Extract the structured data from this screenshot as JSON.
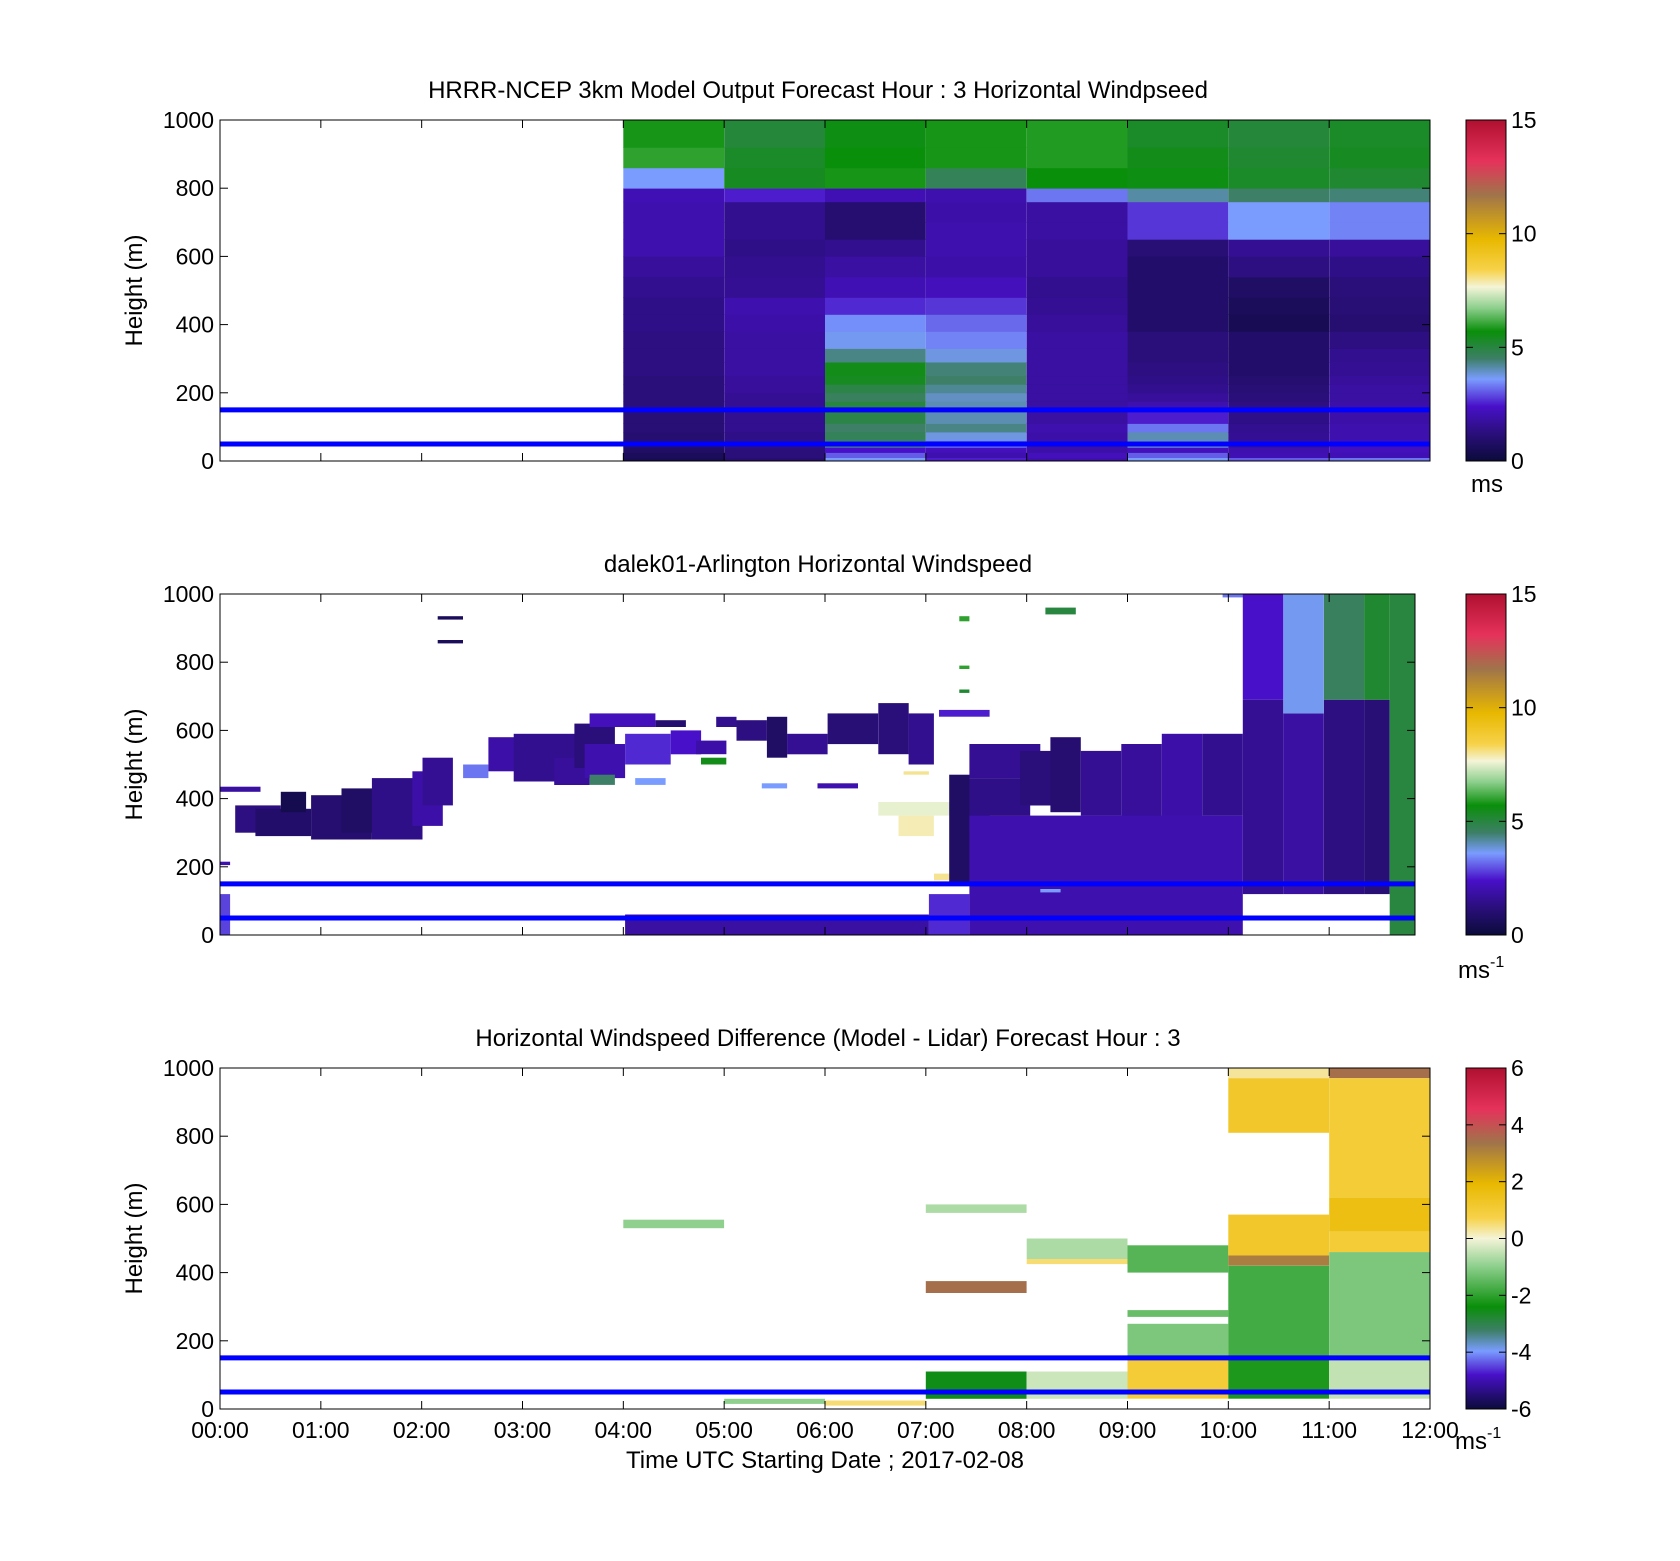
{
  "figure": {
    "xlabel": "Time UTC  Starting Date ; 2017-02-08",
    "xticks": [
      "00:00",
      "01:00",
      "02:00",
      "03:00",
      "04:00",
      "05:00",
      "06:00",
      "07:00",
      "08:00",
      "09:00",
      "10:00",
      "11:00",
      "12:00"
    ],
    "reference_lines": {
      "heights_m": [
        50,
        150
      ],
      "color": "#0000ff"
    }
  },
  "chart_data": [
    {
      "type": "heatmap",
      "title": "HRRR-NCEP 3km Model Output   Forecast Hour : 3 Horizontal Windpseed",
      "ylabel": "Height (m)",
      "ylim": [
        0,
        1000
      ],
      "xlim_hours": [
        0,
        12
      ],
      "yticks": [
        "0",
        "200",
        "400",
        "600",
        "800",
        "1000"
      ],
      "colorbar": {
        "range": [
          0,
          15
        ],
        "ticks": [
          "0",
          "5",
          "10",
          "15"
        ],
        "unit": "ms"
      },
      "data_start_hour": 4,
      "time_step_hours": 1,
      "row_edges_m": [
        0,
        10,
        25,
        40,
        60,
        85,
        110,
        150,
        175,
        200,
        225,
        250,
        290,
        330,
        380,
        430,
        480,
        540,
        600,
        650,
        700,
        760,
        800,
        860,
        920,
        1000
      ],
      "columns": [
        {
          "hour": 4,
          "values": [
            0.5,
            0.6,
            0.8,
            0.9,
            1.0,
            1.1,
            1.1,
            1.2,
            1.2,
            1.2,
            1.2,
            1.3,
            1.3,
            1.3,
            1.4,
            1.4,
            1.5,
            1.7,
            2.0,
            2.0,
            2.0,
            2.1,
            3.5,
            6.0,
            5.8
          ]
        },
        {
          "hour": 5,
          "values": [
            1.0,
            1.2,
            1.2,
            1.3,
            1.4,
            1.5,
            1.5,
            1.6,
            1.6,
            1.7,
            1.7,
            1.8,
            1.8,
            1.8,
            1.9,
            2.0,
            1.6,
            1.5,
            1.4,
            1.5,
            1.5,
            2.5,
            5.4,
            5.3,
            5.1
          ]
        },
        {
          "hour": 6,
          "values": [
            3.5,
            3.0,
            2.4,
            4.3,
            4.7,
            4.5,
            4.9,
            5.0,
            4.6,
            4.9,
            5.4,
            5.5,
            4.3,
            3.6,
            3.4,
            2.6,
            2.1,
            1.8,
            1.5,
            1.0,
            1.0,
            2.1,
            5.8,
            5.7,
            5.6
          ]
        },
        {
          "hour": 7,
          "values": [
            2.5,
            2.0,
            2.2,
            3.2,
            3.7,
            4.3,
            4.0,
            4.0,
            3.9,
            4.2,
            4.5,
            4.4,
            3.7,
            3.3,
            3.1,
            2.7,
            2.2,
            1.9,
            2.0,
            2.0,
            1.9,
            2.0,
            4.7,
            5.8,
            5.8
          ]
        },
        {
          "hour": 8,
          "values": [
            2.0,
            2.2,
            1.9,
            1.8,
            1.9,
            2.0,
            1.8,
            1.8,
            1.8,
            1.8,
            1.8,
            1.8,
            1.8,
            1.8,
            1.7,
            1.6,
            1.5,
            1.7,
            1.7,
            1.8,
            1.8,
            3.2,
            5.7,
            5.9,
            5.9
          ]
        },
        {
          "hour": 9,
          "values": [
            3.5,
            3.0,
            2.2,
            3.8,
            4.0,
            3.2,
            2.5,
            2.0,
            1.7,
            1.5,
            1.4,
            1.3,
            1.2,
            1.2,
            0.9,
            0.9,
            0.9,
            0.9,
            1.1,
            2.7,
            2.7,
            4.1,
            5.6,
            5.5,
            5.3
          ]
        },
        {
          "hour": 10,
          "values": [
            3.0,
            2.1,
            2.0,
            1.7,
            1.6,
            1.5,
            1.4,
            1.3,
            1.2,
            1.1,
            1.0,
            0.9,
            0.9,
            0.9,
            0.5,
            0.6,
            0.8,
            1.3,
            1.6,
            3.5,
            3.5,
            4.5,
            5.3,
            5.2,
            5.1
          ]
        },
        {
          "hour": 11,
          "values": [
            3.2,
            2.1,
            2.2,
            2.2,
            2.0,
            2.0,
            1.9,
            1.9,
            1.8,
            1.8,
            1.7,
            1.6,
            1.5,
            1.3,
            1.0,
            1.1,
            1.2,
            1.4,
            1.7,
            3.3,
            3.3,
            4.4,
            5.2,
            5.4,
            5.3
          ]
        }
      ]
    },
    {
      "type": "heatmap",
      "title": "dalek01-Arlington  Horizontal Windspeed",
      "ylabel": "Height (m)",
      "ylim": [
        0,
        1000
      ],
      "xlim_hours": [
        0,
        11.8
      ],
      "yticks": [
        "0",
        "200",
        "400",
        "600",
        "800",
        "1000"
      ],
      "colorbar": {
        "range": [
          0,
          15
        ],
        "ticks": [
          "0",
          "5",
          "10",
          "15"
        ],
        "unit": "ms",
        "unit_exponent": "-1"
      },
      "note": "Sparse lidar retrievals; data are grouped in height bands over time ranges",
      "segments": [
        {
          "t0": 0.0,
          "t1": 0.4,
          "y0": 420,
          "y1": 435,
          "v": 1.8
        },
        {
          "t0": 0.15,
          "t1": 0.6,
          "y0": 300,
          "y1": 380,
          "v": 1.3
        },
        {
          "t0": 0.35,
          "t1": 0.9,
          "y0": 290,
          "y1": 370,
          "v": 0.9
        },
        {
          "t0": 0.6,
          "t1": 0.85,
          "y0": 360,
          "y1": 420,
          "v": 0.4
        },
        {
          "t0": 0.9,
          "t1": 1.5,
          "y0": 280,
          "y1": 410,
          "v": 1.0
        },
        {
          "t0": 1.2,
          "t1": 1.6,
          "y0": 300,
          "y1": 430,
          "v": 0.8
        },
        {
          "t0": 1.5,
          "t1": 2.0,
          "y0": 280,
          "y1": 460,
          "v": 1.4
        },
        {
          "t0": 1.9,
          "t1": 2.2,
          "y0": 320,
          "y1": 480,
          "v": 1.9
        },
        {
          "t0": 2.0,
          "t1": 2.3,
          "y0": 380,
          "y1": 520,
          "v": 1.6
        },
        {
          "t0": 2.15,
          "t1": 2.4,
          "y0": 855,
          "y1": 865,
          "v": 0.6
        },
        {
          "t0": 2.15,
          "t1": 2.4,
          "y0": 925,
          "y1": 935,
          "v": 0.6
        },
        {
          "t0": 2.4,
          "t1": 2.65,
          "y0": 460,
          "y1": 500,
          "v": 3.2
        },
        {
          "t0": 2.65,
          "t1": 2.95,
          "y0": 480,
          "y1": 580,
          "v": 1.9
        },
        {
          "t0": 2.9,
          "t1": 3.5,
          "y0": 450,
          "y1": 590,
          "v": 1.5
        },
        {
          "t0": 3.3,
          "t1": 3.65,
          "y0": 440,
          "y1": 520,
          "v": 1.7
        },
        {
          "t0": 3.5,
          "t1": 3.9,
          "y0": 490,
          "y1": 620,
          "v": 1.2
        },
        {
          "t0": 3.6,
          "t1": 4.0,
          "y0": 460,
          "y1": 560,
          "v": 2.0
        },
        {
          "t0": 3.65,
          "t1": 3.9,
          "y0": 440,
          "y1": 470,
          "v": 4.5
        },
        {
          "t0": 3.65,
          "t1": 4.3,
          "y0": 610,
          "y1": 650,
          "v": 2.2
        },
        {
          "t0": 4.0,
          "t1": 4.45,
          "y0": 500,
          "y1": 590,
          "v": 2.6
        },
        {
          "t0": 4.1,
          "t1": 4.4,
          "y0": 440,
          "y1": 460,
          "v": 3.5
        },
        {
          "t0": 4.3,
          "t1": 4.6,
          "y0": 610,
          "y1": 630,
          "v": 1.0
        },
        {
          "t0": 4.45,
          "t1": 4.75,
          "y0": 530,
          "y1": 600,
          "v": 2.4
        },
        {
          "t0": 4.7,
          "t1": 5.0,
          "y0": 530,
          "y1": 570,
          "v": 1.9
        },
        {
          "t0": 4.75,
          "t1": 5.0,
          "y0": 500,
          "y1": 520,
          "v": 5.5
        },
        {
          "t0": 4.9,
          "t1": 5.1,
          "y0": 610,
          "y1": 640,
          "v": 1.5
        },
        {
          "t0": 5.1,
          "t1": 5.4,
          "y0": 570,
          "y1": 630,
          "v": 1.3
        },
        {
          "t0": 5.4,
          "t1": 5.6,
          "y0": 520,
          "y1": 640,
          "v": 0.8
        },
        {
          "t0": 5.35,
          "t1": 5.6,
          "y0": 430,
          "y1": 445,
          "v": 3.5
        },
        {
          "t0": 5.6,
          "t1": 6.0,
          "y0": 530,
          "y1": 590,
          "v": 1.6
        },
        {
          "t0": 6.0,
          "t1": 6.5,
          "y0": 560,
          "y1": 650,
          "v": 1.1
        },
        {
          "t0": 5.9,
          "t1": 6.3,
          "y0": 430,
          "y1": 445,
          "v": 2.0
        },
        {
          "t0": 6.5,
          "t1": 6.8,
          "y0": 530,
          "y1": 680,
          "v": 1.2
        },
        {
          "t0": 6.8,
          "t1": 7.05,
          "y0": 500,
          "y1": 650,
          "v": 1.5
        },
        {
          "t0": 6.75,
          "t1": 7.0,
          "y0": 470,
          "y1": 480,
          "v": 8.0
        },
        {
          "t0": 6.5,
          "t1": 7.3,
          "y0": 350,
          "y1": 390,
          "v": 7.5
        },
        {
          "t0": 6.7,
          "t1": 7.05,
          "y0": 290,
          "y1": 350,
          "v": 7.8
        },
        {
          "t0": 7.05,
          "t1": 7.35,
          "y0": 160,
          "y1": 180,
          "v": 8.0
        },
        {
          "t0": 7.2,
          "t1": 7.4,
          "y0": 150,
          "y1": 470,
          "v": 0.8
        },
        {
          "t0": 7.1,
          "t1": 7.6,
          "y0": 640,
          "y1": 660,
          "v": 2.5
        },
        {
          "t0": 7.3,
          "t1": 7.4,
          "y0": 710,
          "y1": 720,
          "v": 5.2
        },
        {
          "t0": 7.3,
          "t1": 7.4,
          "y0": 780,
          "y1": 790,
          "v": 6.0
        },
        {
          "t0": 7.3,
          "t1": 7.4,
          "y0": 920,
          "y1": 935,
          "v": 6.0
        },
        {
          "t0": 7.4,
          "t1": 8.0,
          "y0": 300,
          "y1": 460,
          "v": 1.4
        },
        {
          "t0": 7.4,
          "t1": 8.1,
          "y0": 460,
          "y1": 560,
          "v": 1.6
        },
        {
          "t0": 7.6,
          "t1": 8.0,
          "y0": 330,
          "y1": 350,
          "v": 10.5
        },
        {
          "t0": 7.9,
          "t1": 8.3,
          "y0": 380,
          "y1": 540,
          "v": 1.2
        },
        {
          "t0": 8.2,
          "t1": 8.5,
          "y0": 360,
          "y1": 580,
          "v": 1.0
        },
        {
          "t0": 8.3,
          "t1": 8.5,
          "y0": 285,
          "y1": 300,
          "v": 9.0
        },
        {
          "t0": 8.15,
          "t1": 8.45,
          "y0": 940,
          "y1": 960,
          "v": 5.0
        },
        {
          "t0": 8.5,
          "t1": 8.9,
          "y0": 350,
          "y1": 540,
          "v": 1.6
        },
        {
          "t0": 8.6,
          "t1": 8.9,
          "y0": 200,
          "y1": 330,
          "v": 1.5
        },
        {
          "t0": 8.9,
          "t1": 9.3,
          "y0": 300,
          "y1": 560,
          "v": 1.7
        },
        {
          "t0": 9.3,
          "t1": 9.7,
          "y0": 300,
          "y1": 590,
          "v": 1.9
        },
        {
          "t0": 9.7,
          "t1": 10.1,
          "y0": 350,
          "y1": 590,
          "v": 1.5
        },
        {
          "t0": 9.9,
          "t1": 10.15,
          "y0": 990,
          "y1": 1000,
          "v": 3.2
        },
        {
          "t0": 10.1,
          "t1": 10.5,
          "y0": 120,
          "y1": 690,
          "v": 1.6
        },
        {
          "t0": 10.1,
          "t1": 10.5,
          "y0": 690,
          "y1": 1000,
          "v": 2.4
        },
        {
          "t0": 10.5,
          "t1": 10.9,
          "y0": 120,
          "y1": 650,
          "v": 1.8
        },
        {
          "t0": 10.5,
          "t1": 10.9,
          "y0": 650,
          "y1": 1000,
          "v": 3.6
        },
        {
          "t0": 10.9,
          "t1": 11.3,
          "y0": 120,
          "y1": 690,
          "v": 1.3
        },
        {
          "t0": 10.9,
          "t1": 11.3,
          "y0": 690,
          "y1": 1000,
          "v": 4.6
        },
        {
          "t0": 11.3,
          "t1": 11.55,
          "y0": 120,
          "y1": 690,
          "v": 1.1
        },
        {
          "t0": 11.3,
          "t1": 11.55,
          "y0": 690,
          "y1": 1000,
          "v": 5.2
        },
        {
          "t0": 11.55,
          "t1": 11.8,
          "y0": 0,
          "y1": 1000,
          "v": 5.0
        },
        {
          "t0": 7.4,
          "t1": 10.1,
          "y0": 0,
          "y1": 350,
          "v": 2.0
        },
        {
          "t0": 7.0,
          "t1": 7.4,
          "y0": 0,
          "y1": 120,
          "v": 2.6
        },
        {
          "t0": 4.0,
          "t1": 7.0,
          "y0": 0,
          "y1": 60,
          "v": 1.8
        },
        {
          "t0": 0.0,
          "t1": 0.1,
          "y0": 0,
          "y1": 120,
          "v": 2.8
        },
        {
          "t0": 0.0,
          "t1": 0.1,
          "y0": 205,
          "y1": 215,
          "v": 2.0
        },
        {
          "t0": 8.1,
          "t1": 8.3,
          "y0": 125,
          "y1": 135,
          "v": 3.5
        }
      ]
    },
    {
      "type": "heatmap",
      "title": "Horizontal Windspeed Difference (Model - Lidar) Forecast Hour : 3",
      "ylabel": "Height (m)",
      "ylim": [
        0,
        1000
      ],
      "xlim_hours": [
        0,
        12
      ],
      "yticks": [
        "0",
        "200",
        "400",
        "600",
        "800",
        "1000"
      ],
      "colorbar": {
        "range": [
          -6,
          6
        ],
        "ticks": [
          "-6",
          "-4",
          "-2",
          "0",
          "2",
          "4",
          "6"
        ],
        "unit": "ms",
        "unit_exponent": "-1"
      },
      "segments": [
        {
          "t0": 4.0,
          "t1": 5.0,
          "y0": 530,
          "y1": 555,
          "v": -1.0
        },
        {
          "t0": 5.0,
          "t1": 6.0,
          "y0": 15,
          "y1": 30,
          "v": -1.0
        },
        {
          "t0": 6.0,
          "t1": 7.0,
          "y0": 10,
          "y1": 25,
          "v": 0.5
        },
        {
          "t0": 7.0,
          "t1": 8.0,
          "y0": 575,
          "y1": 600,
          "v": -0.7
        },
        {
          "t0": 7.0,
          "t1": 8.0,
          "y0": 340,
          "y1": 375,
          "v": 3.5
        },
        {
          "t0": 7.0,
          "t1": 8.0,
          "y0": 30,
          "y1": 110,
          "v": -2.5
        },
        {
          "t0": 8.0,
          "t1": 9.0,
          "y0": 440,
          "y1": 500,
          "v": -0.7
        },
        {
          "t0": 8.0,
          "t1": 9.0,
          "y0": 425,
          "y1": 440,
          "v": 0.5
        },
        {
          "t0": 8.0,
          "t1": 9.0,
          "y0": 30,
          "y1": 110,
          "v": -0.4
        },
        {
          "t0": 9.0,
          "t1": 10.0,
          "y0": 400,
          "y1": 480,
          "v": -1.6
        },
        {
          "t0": 9.0,
          "t1": 10.0,
          "y0": 270,
          "y1": 290,
          "v": -1.4
        },
        {
          "t0": 9.0,
          "t1": 10.0,
          "y0": 150,
          "y1": 250,
          "v": -1.2
        },
        {
          "t0": 9.0,
          "t1": 10.0,
          "y0": 30,
          "y1": 150,
          "v": 1.0
        },
        {
          "t0": 10.0,
          "t1": 11.0,
          "y0": 970,
          "y1": 1000,
          "v": 0.3
        },
        {
          "t0": 10.0,
          "t1": 11.0,
          "y0": 810,
          "y1": 970,
          "v": 1.2
        },
        {
          "t0": 10.0,
          "t1": 11.0,
          "y0": 450,
          "y1": 570,
          "v": 1.2
        },
        {
          "t0": 10.0,
          "t1": 11.0,
          "y0": 420,
          "y1": 450,
          "v": 3.2
        },
        {
          "t0": 10.0,
          "t1": 11.0,
          "y0": 150,
          "y1": 420,
          "v": -1.8
        },
        {
          "t0": 10.0,
          "t1": 11.0,
          "y0": 30,
          "y1": 150,
          "v": -2.2
        },
        {
          "t0": 11.0,
          "t1": 12.0,
          "y0": 970,
          "y1": 1000,
          "v": 3.5
        },
        {
          "t0": 11.0,
          "t1": 12.0,
          "y0": 620,
          "y1": 970,
          "v": 1.0
        },
        {
          "t0": 11.0,
          "t1": 12.0,
          "y0": 520,
          "y1": 620,
          "v": 1.6
        },
        {
          "t0": 11.0,
          "t1": 12.0,
          "y0": 460,
          "y1": 520,
          "v": 1.0
        },
        {
          "t0": 11.0,
          "t1": 12.0,
          "y0": 150,
          "y1": 460,
          "v": -1.2
        },
        {
          "t0": 11.0,
          "t1": 12.0,
          "y0": 30,
          "y1": 150,
          "v": -0.5
        }
      ]
    }
  ]
}
